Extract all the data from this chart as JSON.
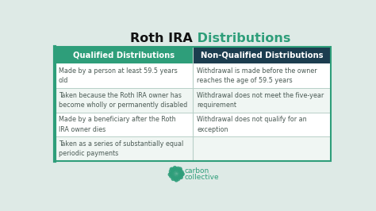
{
  "title_black": "Roth IRA",
  "title_green": " Distributions",
  "title_fontsize": 11.5,
  "bg_color": "#deeae6",
  "header_left_color": "#2e9e7a",
  "header_right_color": "#1c3d4f",
  "header_text_color": "#ffffff",
  "header_left": "Qualified Distributions",
  "header_right": "Non-Qualified Distributions",
  "left_rows": [
    "Made by a person at least 59.5 years\nold",
    "Taken because the Roth IRA owner has\nbecome wholly or permanently disabled",
    "Made by a beneficiary after the Roth\nIRA owner dies",
    "Taken as a series of substantially equal\nperiodic payments"
  ],
  "right_rows": [
    "Withdrawal is made before the owner\nreaches the age of 59.5 years",
    "Withdrawal does not meet the five-year\nrequirement",
    "Withdrawal does not qualify for an\nexception",
    ""
  ],
  "row_bg_colors": [
    "#ffffff",
    "#f0f6f3",
    "#ffffff",
    "#f0f6f3"
  ],
  "cell_text_color": "#4a5a54",
  "cell_fontsize": 5.8,
  "header_fontsize": 7.2,
  "divider_color": "#b8d0c8",
  "table_border_color": "#2e9e7a",
  "logo_color": "#2e9e7a",
  "logo_text_color": "#2e9e7a"
}
